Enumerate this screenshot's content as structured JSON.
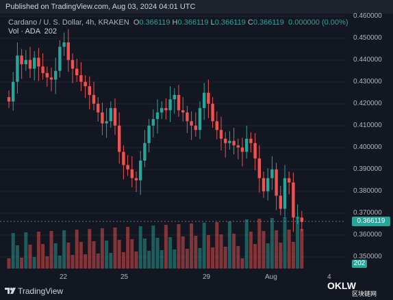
{
  "header": {
    "published": "Published on TradingView.com, Aug 03, 2024 04:01 UTC"
  },
  "legend": {
    "symbol": "Cardano / U. S. Dollar, 4h, KRAKEN",
    "o_label": "O",
    "o_value": "0.366119",
    "h_label": "H",
    "h_value": "0.366119",
    "l_label": "L",
    "l_value": "0.366119",
    "c_label": "C",
    "c_value": "0.366119",
    "change": "0.000000 (0.00%)",
    "vol_label": "Vol · ADA",
    "vol_value": "202"
  },
  "price_axis": [
    "0.460000",
    "0.450000",
    "0.440000",
    "0.430000",
    "0.420000",
    "0.410000",
    "0.400000",
    "0.390000",
    "0.380000",
    "0.370000",
    "0.360000",
    "0.350000"
  ],
  "time_axis": [
    "22",
    "25",
    "29",
    "Aug",
    "4"
  ],
  "last_price": "0.366119",
  "last_volume": "202",
  "footer": {
    "brand": "TradingView"
  },
  "watermark": {
    "text": "OKLW",
    "subtext": "区块链网"
  },
  "colors": {
    "up": "#26a69a",
    "down": "#ef5350",
    "bg": "#131722"
  },
  "chart_data": {
    "type": "candlestick",
    "ylim": [
      0.345,
      0.463
    ],
    "close_series": [
      0.421,
      0.43,
      0.442,
      0.438,
      0.44,
      0.436,
      0.441,
      0.437,
      0.434,
      0.432,
      0.431,
      0.435,
      0.446,
      0.448,
      0.44,
      0.436,
      0.433,
      0.43,
      0.428,
      0.424,
      0.42,
      0.416,
      0.411,
      0.412,
      0.418,
      0.41,
      0.398,
      0.392,
      0.39,
      0.386,
      0.385,
      0.394,
      0.402,
      0.41,
      0.413,
      0.416,
      0.418,
      0.417,
      0.422,
      0.424,
      0.417,
      0.416,
      0.412,
      0.41,
      0.408,
      0.418,
      0.425,
      0.42,
      0.412,
      0.408,
      0.404,
      0.402,
      0.403,
      0.401,
      0.4,
      0.398,
      0.404,
      0.402,
      0.395,
      0.386,
      0.38,
      0.386,
      0.39,
      0.378,
      0.372,
      0.386,
      0.384,
      0.368,
      0.368,
      0.366
    ]
  }
}
